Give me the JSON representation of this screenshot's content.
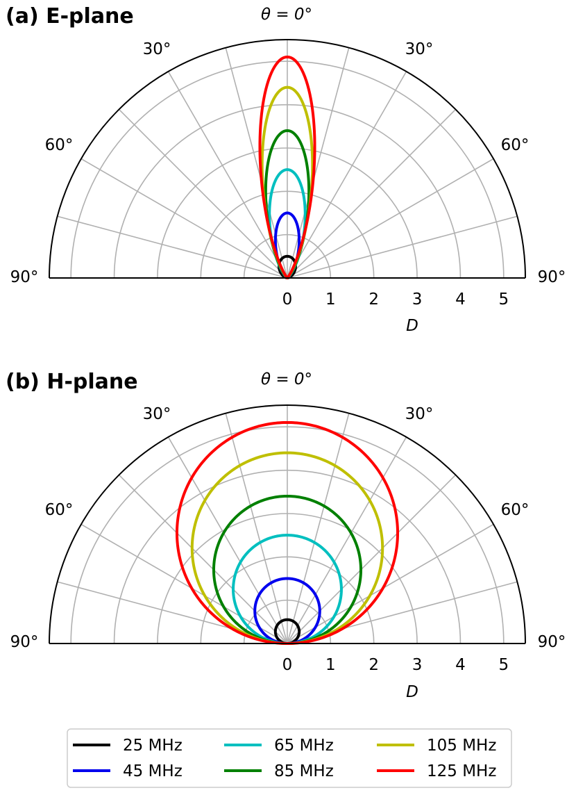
{
  "chart_data": [
    {
      "type": "polar-line",
      "title": "(a) E-plane",
      "theta_label": "θ = 0°",
      "angle_labels": [
        "30°",
        "60°",
        "90°",
        "30°",
        "60°",
        "90°"
      ],
      "r_ticks": [
        "0",
        "1",
        "2",
        "3",
        "4",
        "5"
      ],
      "rlim": [
        0,
        5.5
      ],
      "xlabel": "D",
      "pattern": "E-plane",
      "series": [
        {
          "name": "25 MHz",
          "color": "#000000",
          "D_max": 0.5,
          "beam_exp": 1.0,
          "lobe_width": 0.32
        },
        {
          "name": "45 MHz",
          "color": "#0000ee",
          "D_max": 1.5,
          "beam_exp": 1.0,
          "lobe_width": 0.46
        },
        {
          "name": "65 MHz",
          "color": "#00bfbf",
          "D_max": 2.5,
          "beam_exp": 1.0,
          "lobe_width": 0.5
        },
        {
          "name": "85 MHz",
          "color": "#008000",
          "D_max": 3.4,
          "beam_exp": 1.0,
          "lobe_width": 0.5
        },
        {
          "name": "105 MHz",
          "color": "#bfbf00",
          "D_max": 4.4,
          "beam_exp": 1.0,
          "lobe_width": 0.5
        },
        {
          "name": "125 MHz",
          "color": "#ff0000",
          "D_max": 5.1,
          "beam_exp": 1.0,
          "lobe_width": 0.5
        }
      ]
    },
    {
      "type": "polar-line",
      "title": "(b) H-plane",
      "theta_label": "θ = 0°",
      "angle_labels": [
        "30°",
        "60°",
        "90°",
        "30°",
        "60°",
        "90°"
      ],
      "r_ticks": [
        "0",
        "1",
        "2",
        "3",
        "4",
        "5"
      ],
      "rlim": [
        0,
        5.5
      ],
      "xlabel": "D",
      "pattern": "H-plane",
      "series": [
        {
          "name": "25 MHz",
          "color": "#000000",
          "D_max": 0.55
        },
        {
          "name": "45 MHz",
          "color": "#0000ee",
          "D_max": 1.5
        },
        {
          "name": "65 MHz",
          "color": "#00bfbf",
          "D_max": 2.5
        },
        {
          "name": "85 MHz",
          "color": "#008000",
          "D_max": 3.4
        },
        {
          "name": "105 MHz",
          "color": "#bfbf00",
          "D_max": 4.4
        },
        {
          "name": "125 MHz",
          "color": "#ff0000",
          "D_max": 5.1
        }
      ]
    }
  ],
  "legend": {
    "placement": "bottom-center",
    "entries": [
      {
        "label": "25 MHz",
        "color": "#000000"
      },
      {
        "label": "45 MHz",
        "color": "#0000ee"
      },
      {
        "label": "65 MHz",
        "color": "#00bfbf"
      },
      {
        "label": "85 MHz",
        "color": "#008000"
      },
      {
        "label": "105 MHz",
        "color": "#bfbf00"
      },
      {
        "label": "125 MHz",
        "color": "#ff0000"
      }
    ]
  }
}
